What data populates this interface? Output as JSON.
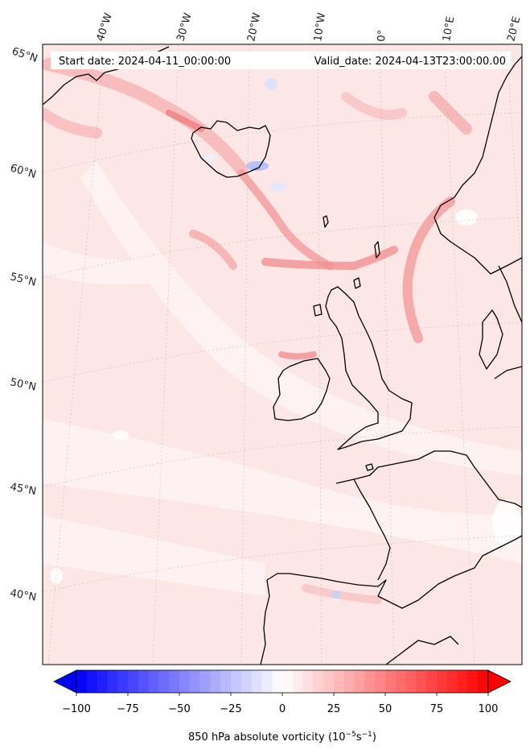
{
  "annotations": {
    "start_date": "Start date: 2024-04-11_00:00:00",
    "valid_date": "Valid_date: 2024-04-13T23:00:00.00"
  },
  "longitude_ticks": [
    "40°W",
    "30°W",
    "20°W",
    "10°W",
    "0°",
    "10°E",
    "20°E"
  ],
  "latitude_ticks": [
    "65°N",
    "60°N",
    "55°N",
    "50°N",
    "45°N",
    "40°N"
  ],
  "colorbar": {
    "label_prefix": "850 hPa absolute vorticity (",
    "label_unit": "10",
    "label_exp1": "−5",
    "label_mid": "s",
    "label_exp2": "−1",
    "label_suffix": ")",
    "min": -100,
    "max": 100,
    "ticks": [
      "−100",
      "−75",
      "−50",
      "−25",
      "0",
      "25",
      "50",
      "75",
      "100"
    ],
    "tick_values": [
      -100,
      -75,
      -50,
      -25,
      0,
      25,
      50,
      75,
      100
    ],
    "colormap": "bwr",
    "extend": "both"
  },
  "colors": {
    "negative": "#0000ff",
    "zero": "#ffffff",
    "positive": "#ff0000",
    "coastline": "#000000",
    "background_field": "#fde3e3"
  }
}
